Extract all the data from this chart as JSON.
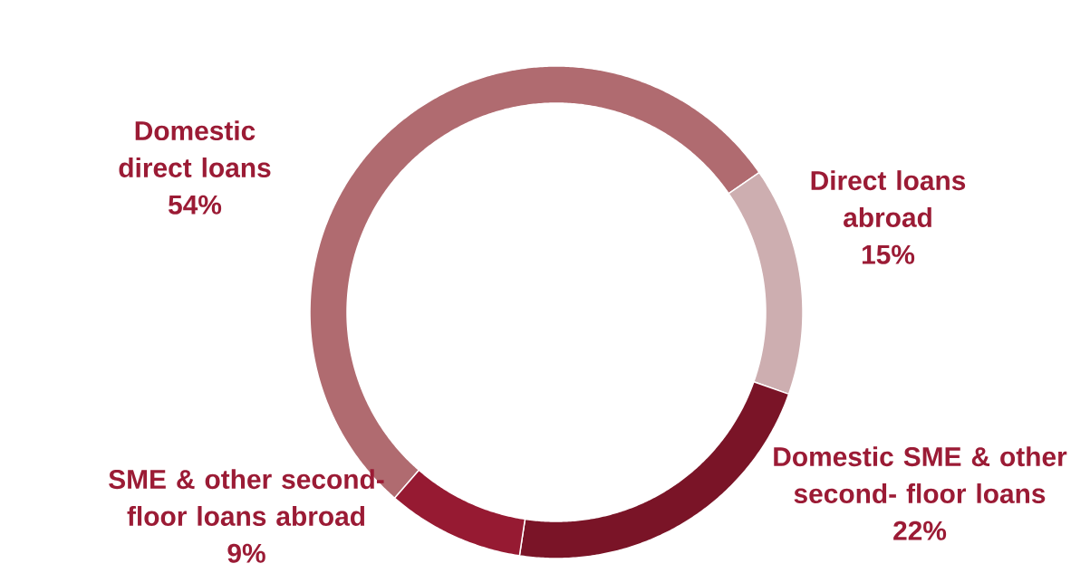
{
  "chart_data": {
    "type": "donut",
    "categories": [
      "Domestic direct loans",
      "Direct loans abroad",
      "Domestic SME & other second- floor loans",
      "SME & other second- floor loans abroad"
    ],
    "values": [
      54,
      15,
      22,
      9
    ],
    "value_labels": [
      "54%",
      "15%",
      "22%",
      "9%"
    ],
    "colors": [
      "#b06b70",
      "#cdaeb0",
      "#7a1427",
      "#961a32"
    ]
  }
}
